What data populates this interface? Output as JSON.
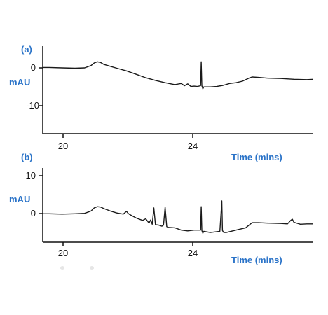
{
  "chart_data": [
    {
      "type": "line",
      "panel_label": "(a)",
      "ylabel": "mAU",
      "xlabel": "Time (mins)",
      "x_ticks": [
        "20",
        "24"
      ],
      "y_ticks": [
        "0",
        "-10"
      ],
      "xlim": [
        19.4,
        27.8
      ],
      "ylim": [
        -17.4,
        5.6
      ],
      "series": [
        {
          "x": [
            19.4,
            19.6,
            20.0,
            20.4,
            20.7,
            20.9,
            21.0,
            21.1,
            21.2,
            21.3,
            21.5,
            21.7,
            22.0,
            22.3,
            22.6,
            22.9,
            23.2,
            23.5,
            23.7,
            23.8,
            23.9,
            24.0,
            24.1,
            24.2,
            24.3,
            24.32,
            24.34,
            24.37,
            24.4,
            24.6,
            24.8,
            25.0,
            25.2,
            25.4,
            25.6,
            25.8,
            25.9,
            26.1,
            26.4,
            26.8,
            27.2,
            27.6,
            27.8
          ],
          "y": [
            0.0,
            0.0,
            -0.1,
            -0.2,
            -0.1,
            0.5,
            1.2,
            1.5,
            1.3,
            0.8,
            0.3,
            -0.2,
            -0.9,
            -1.8,
            -2.7,
            -3.4,
            -4.0,
            -4.5,
            -4.2,
            -4.8,
            -4.3,
            -5.0,
            -4.9,
            -5.0,
            -4.8,
            1.5,
            -4.8,
            -5.6,
            -5.1,
            -5.1,
            -5.0,
            -4.7,
            -4.2,
            -4.0,
            -3.6,
            -2.8,
            -2.5,
            -2.6,
            -2.8,
            -2.9,
            -3.1,
            -3.2,
            -3.1
          ]
        }
      ]
    },
    {
      "type": "line",
      "panel_label": "(b)",
      "ylabel": "mAU",
      "xlabel": "Time (mins)",
      "x_ticks": [
        "20",
        "24"
      ],
      "y_ticks": [
        "10",
        "0"
      ],
      "xlim": [
        19.4,
        27.8
      ],
      "ylim": [
        -7.4,
        11.6
      ],
      "series": [
        {
          "x": [
            19.4,
            19.6,
            20.0,
            20.4,
            20.7,
            20.9,
            21.0,
            21.1,
            21.2,
            21.3,
            21.5,
            21.7,
            21.9,
            22.0,
            22.05,
            22.1,
            22.3,
            22.5,
            22.6,
            22.7,
            22.75,
            22.8,
            22.85,
            22.9,
            23.0,
            23.1,
            23.15,
            23.2,
            23.25,
            23.3,
            23.5,
            23.7,
            23.9,
            24.1,
            24.3,
            24.32,
            24.34,
            24.37,
            24.4,
            24.6,
            24.9,
            24.96,
            24.98,
            25.02,
            25.1,
            25.3,
            25.5,
            25.7,
            25.9,
            26.1,
            26.4,
            26.8,
            27.0,
            27.1,
            27.15,
            27.2,
            27.4,
            27.6,
            27.8
          ],
          "y": [
            -0.1,
            -0.1,
            -0.2,
            -0.1,
            0.0,
            0.6,
            1.4,
            1.7,
            1.6,
            1.2,
            0.6,
            0.1,
            -0.2,
            0.5,
            0.0,
            -0.3,
            -1.2,
            -1.8,
            -1.4,
            -2.5,
            -1.7,
            -2.8,
            1.4,
            -2.9,
            -3.0,
            -3.3,
            -3.0,
            1.6,
            -3.4,
            -3.6,
            -3.7,
            -4.3,
            -4.5,
            -4.3,
            -4.3,
            1.7,
            -4.4,
            -5.1,
            -4.6,
            -4.9,
            -4.6,
            3.2,
            -4.4,
            -4.9,
            -4.9,
            -4.5,
            -4.1,
            -3.7,
            -2.4,
            -2.4,
            -2.5,
            -2.6,
            -2.7,
            -1.8,
            -1.5,
            -2.3,
            -2.8,
            -2.7,
            -2.7
          ]
        }
      ]
    }
  ]
}
